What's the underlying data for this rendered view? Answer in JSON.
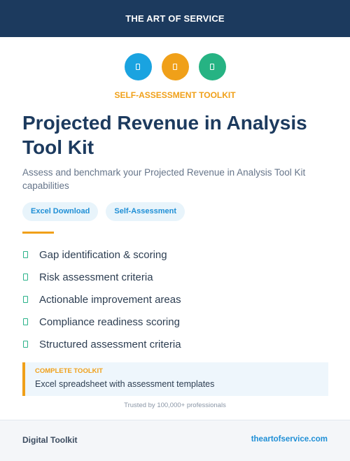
{
  "header": {
    "title": "THE ART OF SERVICE"
  },
  "icons": [
    {
      "name": "document-icon",
      "color": "#1aa3e0"
    },
    {
      "name": "clipboard-icon",
      "color": "#f0a019"
    },
    {
      "name": "chart-icon",
      "color": "#26b383"
    }
  ],
  "kicker": "SELF-ASSESSMENT TOOLKIT",
  "title": "Projected Revenue in Analysis Tool Kit",
  "subtitle": "Assess and benchmark your Projected Revenue in Analysis Tool Kit capabilities",
  "tags": [
    "Excel Download",
    "Self-Assessment"
  ],
  "features": [
    "Gap identification & scoring",
    "Risk assessment criteria",
    "Actionable improvement areas",
    "Compliance readiness scoring",
    "Structured assessment criteria"
  ],
  "callout": {
    "label": "COMPLETE TOOLKIT",
    "text": "Excel spreadsheet with assessment templates"
  },
  "trust": "Trusted by 100,000+ professionals",
  "footer": {
    "left": "Digital Toolkit",
    "right": "theartofservice.com"
  },
  "colors": {
    "navy": "#1c3a5e",
    "orange": "#f0a019",
    "blue": "#1f8fd6",
    "green": "#2bb38a"
  }
}
